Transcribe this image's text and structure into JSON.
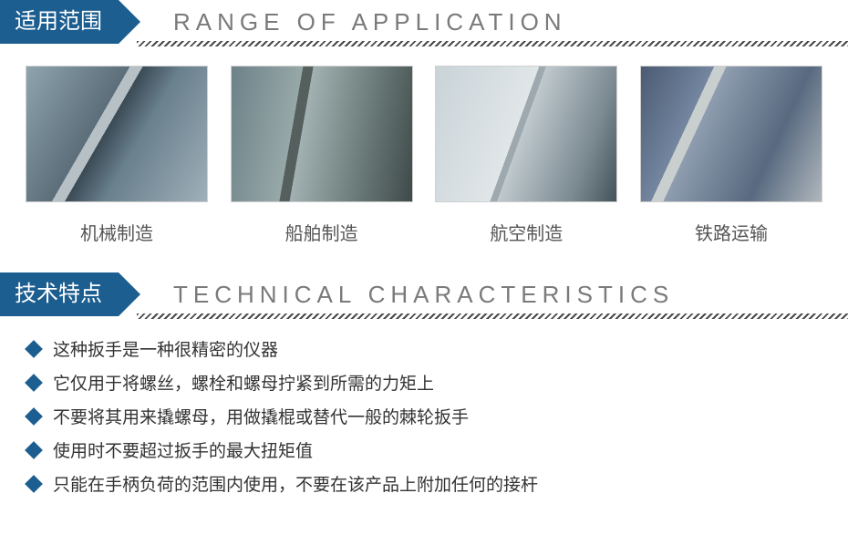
{
  "colors": {
    "badge_bg": "#1c5e90",
    "badge_text": "#ffffff",
    "subtitle_text": "#7a7a7a",
    "caption_text": "#555555",
    "bullet_text": "#333333",
    "diamond": "#1c5e90"
  },
  "range": {
    "badge": "适用范围",
    "subtitle": "RANGE OF APPLICATION",
    "items": [
      {
        "caption": "机械制造"
      },
      {
        "caption": "船舶制造"
      },
      {
        "caption": "航空制造"
      },
      {
        "caption": "铁路运输"
      }
    ]
  },
  "tech": {
    "badge": "技术特点",
    "subtitle": "TECHNICAL CHARACTERISTICS",
    "bullets": [
      "这种扳手是一种很精密的仪器",
      "它仅用于将螺丝，螺栓和螺母拧紧到所需的力矩上",
      "不要将其用来撬螺母，用做撬棍或替代一般的棘轮扳手",
      "使用时不要超过扳手的最大扭矩值",
      "只能在手柄负荷的范围内使用，不要在该产品上附加任何的接杆"
    ]
  }
}
